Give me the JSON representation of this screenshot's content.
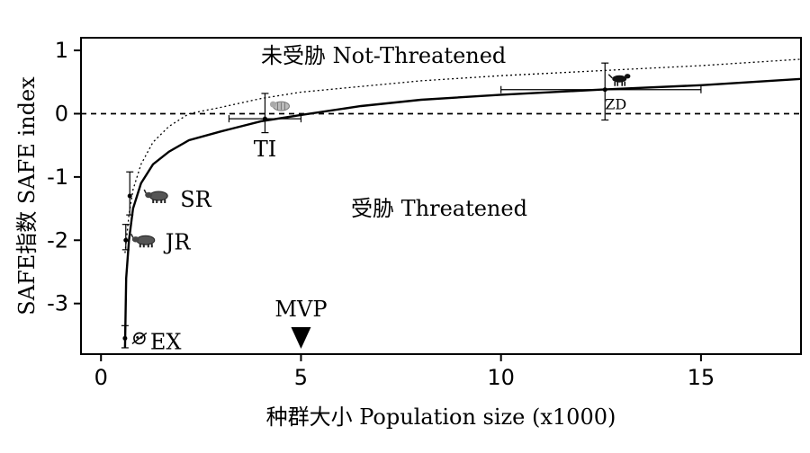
{
  "chart_data": {
    "type": "line",
    "ylabel": "SAFE指数  SAFE index",
    "xlabel": "种群大小  Population size (x1000)",
    "xlim": [
      -0.5,
      17.5
    ],
    "ylim": [
      -3.8,
      1.2
    ],
    "x_ticks": [
      0,
      5,
      10,
      15
    ],
    "y_ticks": [
      1,
      0,
      -1,
      -2,
      -3
    ],
    "x_tick_labels": [
      "0",
      "5",
      "10",
      "15"
    ],
    "y_tick_labels": [
      "1",
      "0",
      "-1",
      "-2",
      "-3"
    ],
    "grid": false,
    "reference_line_y": 0,
    "region_labels": {
      "above": "未受胁 Not-Threatened",
      "below": "受胁 Threatened"
    },
    "series": [
      {
        "style": "solid",
        "x": [
          0.6,
          0.63,
          0.7,
          0.8,
          1.0,
          1.3,
          1.7,
          2.2,
          3.0,
          4.0,
          5.0,
          6.5,
          8.0,
          10.0,
          12.5,
          15.0,
          17.5
        ],
        "y": [
          -3.7,
          -2.6,
          -2.0,
          -1.5,
          -1.1,
          -0.8,
          -0.6,
          -0.42,
          -0.28,
          -0.12,
          -0.02,
          0.12,
          0.22,
          0.3,
          0.38,
          0.45,
          0.55
        ]
      },
      {
        "style": "dotted",
        "x": [
          0.6,
          0.7,
          0.8,
          1.0,
          1.3,
          1.7,
          2.2,
          3.0,
          4.0,
          5.0,
          6.5,
          8.0,
          10.0,
          12.5,
          15.0,
          17.5
        ],
        "y": [
          -2.2,
          -1.6,
          -1.2,
          -0.8,
          -0.45,
          -0.2,
          0.0,
          0.1,
          0.24,
          0.34,
          0.43,
          0.52,
          0.6,
          0.68,
          0.76,
          0.86
        ]
      }
    ],
    "points": [
      {
        "label": "EX",
        "x": 0.6,
        "y": -3.55,
        "y_low": -3.7,
        "y_high": -3.35,
        "icon": "skull-icon"
      },
      {
        "label": "JR",
        "x": 0.62,
        "y": -2.0,
        "y_low": -2.15,
        "y_high": -1.75,
        "icon": "rhino-icon"
      },
      {
        "label": "SR",
        "x": 0.72,
        "y": -1.3,
        "y_low": -1.6,
        "y_high": -0.92,
        "icon": "rhino-icon"
      },
      {
        "label": "TI",
        "x": 4.1,
        "y": -0.08,
        "y_low": -0.3,
        "y_high": 0.32,
        "x_low": 3.2,
        "x_high": 5.0,
        "icon": "tiger-icon"
      },
      {
        "label": "ZD",
        "x": 12.6,
        "y": 0.38,
        "y_low": -0.1,
        "y_high": 0.8,
        "x_low": 10.0,
        "x_high": 15.0,
        "icon": "dog-icon"
      }
    ],
    "marker": {
      "label": "MVP",
      "x": 5
    }
  }
}
